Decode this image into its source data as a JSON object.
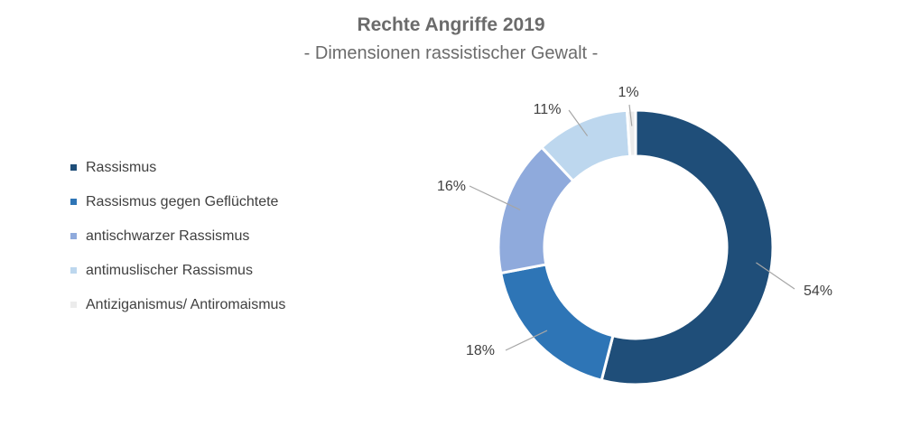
{
  "chart_data": {
    "type": "pie",
    "donut": true,
    "title": "Rechte Angriffe 2019",
    "subtitle": "- Dimensionen rassistischer Gewalt -",
    "legend_position": "left",
    "slices": [
      {
        "label": "Rassismus",
        "value": 54,
        "value_label": "54%",
        "color": "#1f4e79"
      },
      {
        "label": "Rassismus gegen Geflüchtete",
        "value": 18,
        "value_label": "18%",
        "color": "#2e75b6"
      },
      {
        "label": "antischwarzer Rassismus",
        "value": 16,
        "value_label": "16%",
        "color": "#8faadc"
      },
      {
        "label": "antimuslischer Rassismus",
        "value": 11,
        "value_label": "11%",
        "color": "#bdd7ee"
      },
      {
        "label": "Antiziganismus/ Antiromaismus",
        "value": 1,
        "value_label": "1%",
        "color": "#ececec"
      }
    ]
  }
}
